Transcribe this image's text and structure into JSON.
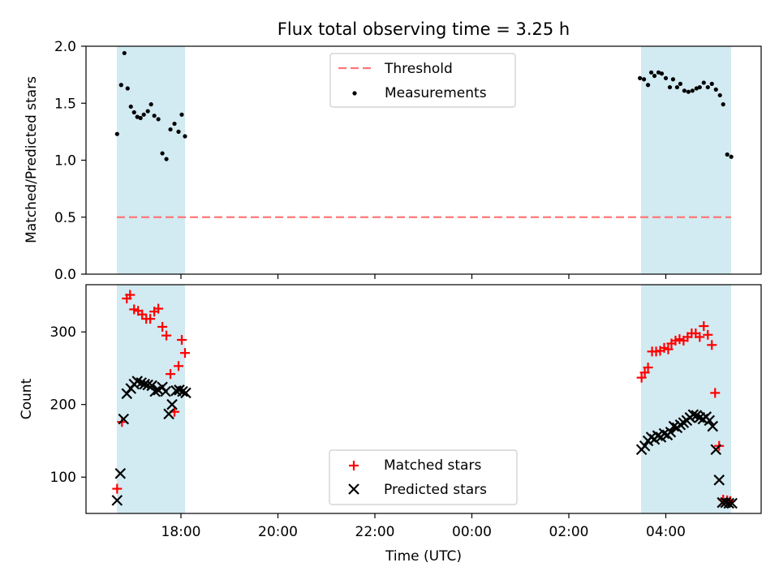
{
  "chart_data": {
    "title": "Flux total observing time = 3.25 h",
    "xlabel": "Time (UTC)",
    "x_ticks": [
      "18:00",
      "20:00",
      "22:00",
      "00:00",
      "02:00",
      "04:00"
    ],
    "shaded_colour": "#add8e6",
    "panels": [
      {
        "type": "scatter",
        "ylabel": "Matched/Predicted stars",
        "ylim": [
          0,
          2.0
        ],
        "y_ticks": [
          "0.0",
          "0.5",
          "1.0",
          "1.5",
          "2.0"
        ],
        "legend_position": "upper center",
        "threshold": {
          "name": "Threshold",
          "value": 0.5,
          "colour": "#ff7777",
          "style": "dashed"
        },
        "series": [
          {
            "name": "Measurements",
            "marker": "dot",
            "colour": "#000000",
            "x": [
              "16:41",
              "16:46",
              "16:50",
              "16:54",
              "16:58",
              "17:02",
              "17:06",
              "17:10",
              "17:14",
              "17:19",
              "17:23",
              "17:27",
              "17:32",
              "17:37",
              "17:42",
              "17:47",
              "17:52",
              "17:57",
              "18:01",
              "18:05",
              "03:28",
              "03:33",
              "03:38",
              "03:42",
              "03:46",
              "03:51",
              "03:55",
              "04:00",
              "04:05",
              "04:09",
              "04:14",
              "04:18",
              "04:23",
              "04:28",
              "04:33",
              "04:38",
              "04:42",
              "04:47",
              "04:52",
              "04:57",
              "05:02",
              "05:07",
              "05:11",
              "05:16",
              "05:21"
            ],
            "y": [
              1.23,
              1.66,
              1.94,
              1.63,
              1.47,
              1.42,
              1.38,
              1.37,
              1.4,
              1.43,
              1.49,
              1.39,
              1.36,
              1.06,
              1.01,
              1.27,
              1.32,
              1.25,
              1.4,
              1.21,
              1.72,
              1.71,
              1.66,
              1.77,
              1.74,
              1.77,
              1.76,
              1.72,
              1.64,
              1.71,
              1.64,
              1.67,
              1.61,
              1.6,
              1.61,
              1.63,
              1.64,
              1.68,
              1.64,
              1.67,
              1.62,
              1.57,
              1.49,
              1.05,
              1.03
            ]
          }
        ]
      },
      {
        "type": "scatter",
        "ylabel": "Count",
        "ylim": [
          50,
          365
        ],
        "y_ticks": [
          "100",
          "200",
          "300"
        ],
        "legend_position": "lower center",
        "series": [
          {
            "name": "Matched stars",
            "marker": "plus",
            "colour": "#ff0000",
            "x": [
              "16:41",
              "16:47",
              "16:53",
              "16:57",
              "17:02",
              "17:07",
              "17:12",
              "17:17",
              "17:22",
              "17:27",
              "17:32",
              "17:37",
              "17:42",
              "17:47",
              "17:52",
              "17:57",
              "18:01",
              "18:05",
              "03:30",
              "03:34",
              "03:38",
              "03:43",
              "03:48",
              "03:53",
              "03:58",
              "04:03",
              "04:07",
              "04:12",
              "04:17",
              "04:22",
              "04:27",
              "04:32",
              "04:37",
              "04:42",
              "04:47",
              "04:52",
              "04:57",
              "05:01",
              "05:06",
              "05:11",
              "05:16",
              "05:20"
            ],
            "y": [
              84,
              176,
              346,
              351,
              331,
              329,
              324,
              318,
              318,
              328,
              332,
              307,
              295,
              242,
              190,
              253,
              289,
              271,
              237,
              244,
              251,
              273,
              273,
              274,
              278,
              276,
              284,
              288,
              290,
              288,
              293,
              298,
              298,
              293,
              308,
              296,
              282,
              216,
              143,
              69,
              68,
              67
            ]
          },
          {
            "name": "Predicted stars",
            "marker": "x",
            "colour": "#000000",
            "x": [
              "16:41",
              "16:45",
              "16:49",
              "16:53",
              "16:58",
              "17:02",
              "17:06",
              "17:11",
              "17:15",
              "17:19",
              "17:24",
              "17:28",
              "17:32",
              "17:37",
              "17:41",
              "17:45",
              "17:49",
              "17:54",
              "17:58",
              "18:02",
              "18:06",
              "03:30",
              "03:34",
              "03:38",
              "03:42",
              "03:46",
              "03:50",
              "03:54",
              "03:58",
              "04:02",
              "04:06",
              "04:10",
              "04:14",
              "04:18",
              "04:22",
              "04:26",
              "04:30",
              "04:34",
              "04:38",
              "04:42",
              "04:46",
              "04:50",
              "04:54",
              "04:58",
              "05:02",
              "05:06",
              "05:10",
              "05:14",
              "05:18",
              "05:22"
            ],
            "y": [
              68,
              105,
              180,
              215,
              222,
              228,
              232,
              230,
              228,
              227,
              226,
              218,
              220,
              224,
              218,
              187,
              200,
              219,
              220,
              218,
              216,
              138,
              143,
              150,
              155,
              152,
              157,
              155,
              160,
              158,
              162,
              170,
              168,
              172,
              175,
              178,
              182,
              186,
              185,
              182,
              180,
              183,
              178,
              170,
              138,
              96,
              65,
              65,
              64,
              64
            ]
          }
        ]
      }
    ]
  }
}
